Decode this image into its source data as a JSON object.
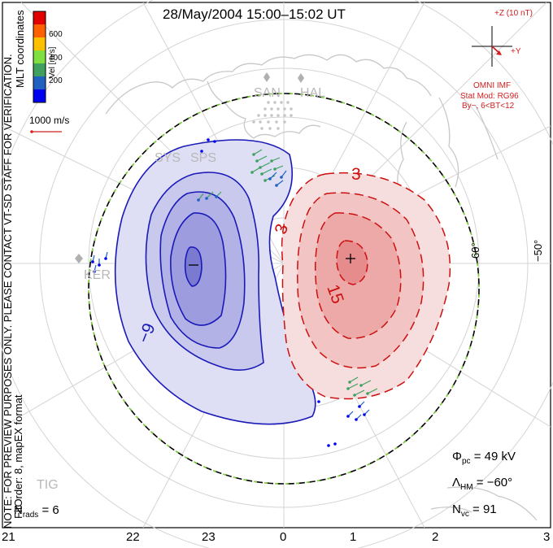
{
  "title": "28/May/2004 15:00–15:02 UT",
  "coordinates": "MLT coordinates",
  "velocity_scale": {
    "axis_label": "Vel [m/s]",
    "ticks": [
      "600",
      "400",
      "200"
    ],
    "colors": [
      "#e00000",
      "#ff6000",
      "#ffc000",
      "#80e040",
      "#40a060",
      "#2060c0",
      "#0000f0"
    ]
  },
  "velocity_reference": "1000 m/s",
  "imf": {
    "label_z": "+Z (10 nT)",
    "label_y": "+Y",
    "source": "OMNI IMF",
    "stat_mod": "Stat Mod: RG96",
    "conditions": "By−, 6<BT<12"
  },
  "notice": "NOTE: FOR PREVIEW PURPOSES ONLY. PLEASE CONTACT VT-SD STAFF FOR VERIFICATION.",
  "fit_info": "FitOrder: 8, mapEX format",
  "mlt_labels": [
    "21",
    "22",
    "23",
    "0",
    "1",
    "2",
    "3"
  ],
  "lat_labels": [
    "60°",
    "−50°"
  ],
  "stations": [
    "SAN",
    "HAL",
    "SYS",
    "SPS",
    "KER",
    "TIG"
  ],
  "contour_labels": [
    "3",
    "3",
    "15",
    "−9",
    "+",
    "−"
  ],
  "stats": {
    "n_rads_symbol": "N",
    "n_rads_sub": "rads",
    "n_rads_value": "= 6",
    "phi_symbol": "Φ",
    "phi_sub": "pc",
    "phi_value": "= 49 kV",
    "lambda_symbol": "Λ",
    "lambda_sub": "HM",
    "lambda_value": "= −60°",
    "nvc_symbol": "N",
    "nvc_sub": "vc",
    "nvc_value": "= 91"
  },
  "colors": {
    "negative_cell": "#1a1ab8",
    "positive_cell": "#cc1010",
    "boundary_green": "#7ccf3a",
    "grid": "#d2d2d2",
    "coast": "#c8c8c8"
  }
}
